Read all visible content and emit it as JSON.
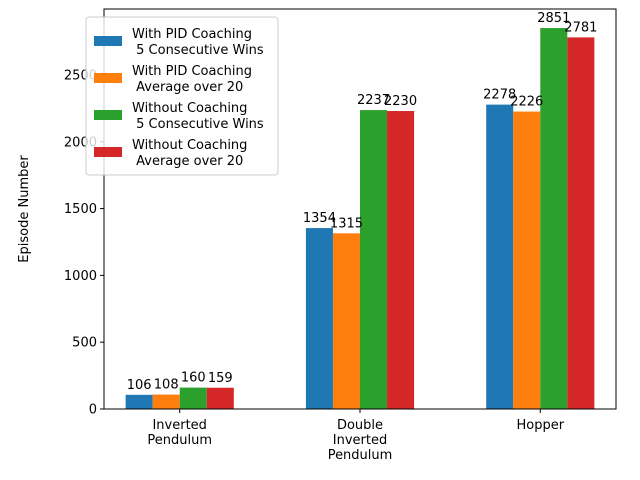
{
  "chart_data": {
    "type": "bar",
    "categories": [
      [
        "Inverted",
        "Pendulum"
      ],
      [
        "Double",
        "Inverted",
        "Pendulum"
      ],
      [
        "Hopper"
      ]
    ],
    "series": [
      {
        "name": [
          "With PID Coaching",
          " 5 Consecutive Wins"
        ],
        "color": "#1f77b4",
        "values": [
          106,
          1354,
          2278
        ]
      },
      {
        "name": [
          "With PID Coaching",
          " Average over 20"
        ],
        "color": "#ff7f0e",
        "values": [
          108,
          1315,
          2226
        ]
      },
      {
        "name": [
          "Without Coaching",
          " 5 Consecutive Wins"
        ],
        "color": "#2ca02c",
        "values": [
          160,
          2237,
          2851
        ]
      },
      {
        "name": [
          "Without Coaching",
          " Average over 20"
        ],
        "color": "#d62728",
        "values": [
          159,
          2230,
          2781
        ]
      }
    ],
    "xlabel": "",
    "ylabel": "Episode Number",
    "ylim": [
      0,
      2993.55
    ],
    "yticks": [
      0,
      500,
      1000,
      1500,
      2000,
      2500
    ],
    "grid": false,
    "legend_position": "upper-left"
  }
}
